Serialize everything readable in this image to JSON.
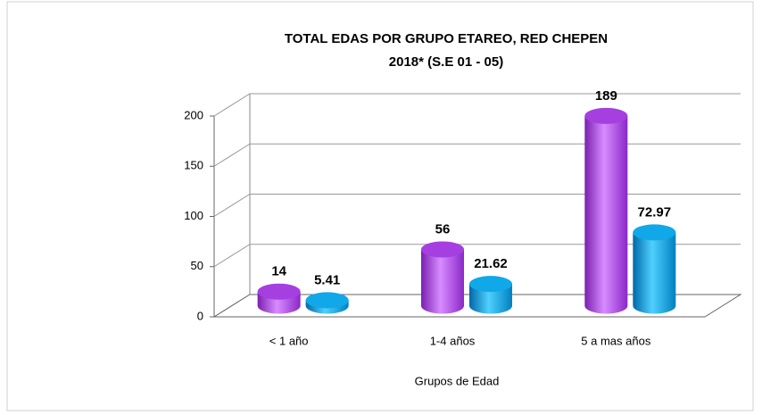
{
  "chart_data": {
    "type": "bar3d",
    "title": [
      "TOTAL EDAS POR GRUPO ETAREO, RED CHEPEN",
      "2018* (S.E 01 - 05)"
    ],
    "x_label": "Grupos de Edad",
    "categories": [
      "< 1 año",
      "1-4 años",
      "5 a mas años"
    ],
    "series": [
      {
        "color": "#a53fe0",
        "values": [
          14,
          56,
          189
        ]
      },
      {
        "color": "#10a8e8",
        "values": [
          5.41,
          21.62,
          72.97
        ]
      }
    ],
    "ylim": [
      0,
      200
    ],
    "yticks": [
      0,
      50,
      100,
      150,
      200
    ],
    "grid": true
  }
}
